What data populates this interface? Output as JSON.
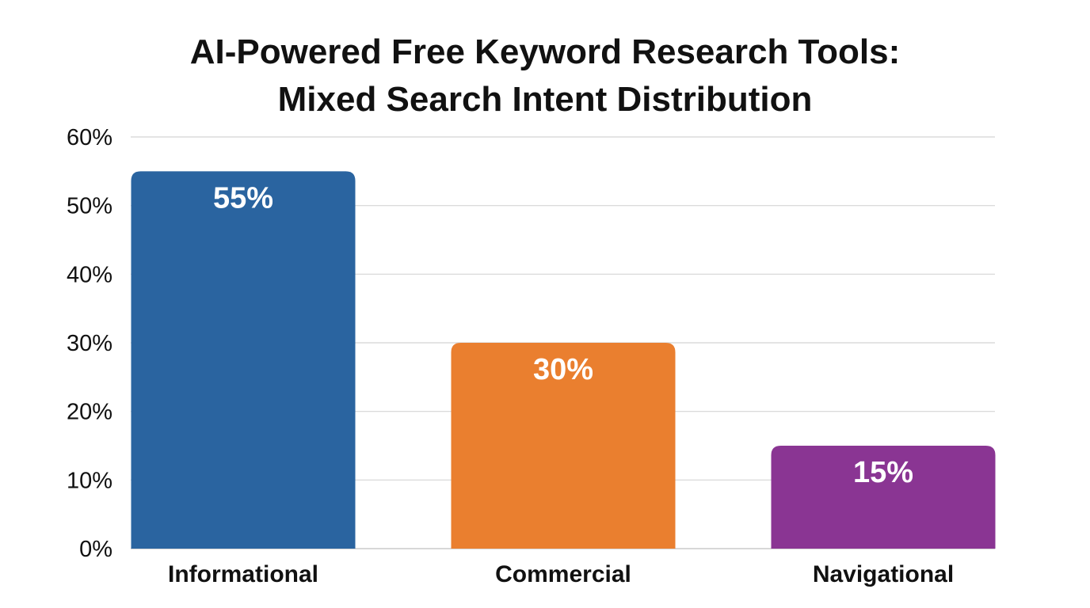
{
  "chart_data": {
    "type": "bar",
    "title_line1": "AI-Powered Free Keyword Research Tools:",
    "title_line2": "Mixed Search Intent Distribution",
    "categories": [
      "Informational",
      "Commercial",
      "Navigational"
    ],
    "values": [
      55,
      30,
      15
    ],
    "value_labels": [
      "55%",
      "30%",
      "15%"
    ],
    "colors": [
      "#2a64a0",
      "#ea7f2f",
      "#8a3593"
    ],
    "y_ticks": [
      0,
      10,
      20,
      30,
      40,
      50,
      60
    ],
    "y_tick_labels": [
      "0%",
      "10%",
      "20%",
      "30%",
      "40%",
      "50%",
      "60%"
    ],
    "ylim": [
      0,
      60
    ],
    "grid": true,
    "grid_color": "#d4d4d4",
    "xlabel": "",
    "ylabel": ""
  }
}
